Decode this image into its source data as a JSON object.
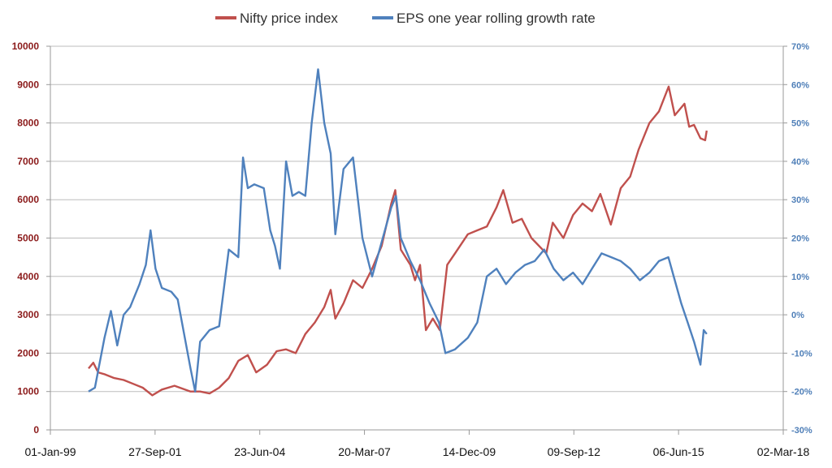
{
  "chart_data": {
    "type": "line",
    "title": "",
    "legend": {
      "placement": "top-center",
      "entries": [
        {
          "name": "Nifty price index",
          "color": "#c0504d"
        },
        {
          "name": "EPS one year rolling growth rate",
          "color": "#4f81bd"
        }
      ]
    },
    "x_axis": {
      "type": "date",
      "ticks": [
        "01-Jan-99",
        "27-Sep-01",
        "23-Jun-04",
        "20-Mar-07",
        "14-Dec-09",
        "09-Sep-12",
        "06-Jun-15",
        "02-Mar-18"
      ],
      "range": [
        "1999-01-01",
        "2018-03-02"
      ]
    },
    "y_left": {
      "ylim": [
        0,
        10000
      ],
      "ticks": [
        "0",
        "1000",
        "2000",
        "3000",
        "4000",
        "5000",
        "6000",
        "7000",
        "8000",
        "9000",
        "10000"
      ]
    },
    "y_right": {
      "ylim": [
        -30,
        70
      ],
      "unit": "%",
      "ticks": [
        "-30%",
        "-20%",
        "-10%",
        "0%",
        "10%",
        "20%",
        "30%",
        "40%",
        "50%",
        "60%",
        "70%"
      ]
    },
    "grid": true,
    "series": [
      {
        "name": "Nifty price index",
        "axis": "left",
        "color": "#c0504d",
        "points": [
          [
            "2000-01-01",
            1600
          ],
          [
            "2000-02-15",
            1750
          ],
          [
            "2000-04-01",
            1500
          ],
          [
            "2000-06-01",
            1450
          ],
          [
            "2000-09-01",
            1350
          ],
          [
            "2000-12-01",
            1300
          ],
          [
            "2001-03-01",
            1200
          ],
          [
            "2001-06-01",
            1100
          ],
          [
            "2001-09-01",
            900
          ],
          [
            "2001-12-01",
            1050
          ],
          [
            "2002-04-01",
            1150
          ],
          [
            "2002-09-01",
            1000
          ],
          [
            "2002-12-01",
            1000
          ],
          [
            "2003-03-01",
            950
          ],
          [
            "2003-06-01",
            1100
          ],
          [
            "2003-09-01",
            1350
          ],
          [
            "2003-12-01",
            1800
          ],
          [
            "2004-03-01",
            1950
          ],
          [
            "2004-05-20",
            1500
          ],
          [
            "2004-09-01",
            1700
          ],
          [
            "2004-12-01",
            2050
          ],
          [
            "2005-03-01",
            2100
          ],
          [
            "2005-06-01",
            2000
          ],
          [
            "2005-09-01",
            2500
          ],
          [
            "2005-12-01",
            2800
          ],
          [
            "2006-03-01",
            3200
          ],
          [
            "2006-05-01",
            3650
          ],
          [
            "2006-06-15",
            2900
          ],
          [
            "2006-09-01",
            3300
          ],
          [
            "2006-12-01",
            3900
          ],
          [
            "2007-03-01",
            3700
          ],
          [
            "2007-06-01",
            4200
          ],
          [
            "2007-09-01",
            4800
          ],
          [
            "2007-12-01",
            5900
          ],
          [
            "2008-01-08",
            6250
          ],
          [
            "2008-03-01",
            4700
          ],
          [
            "2008-06-01",
            4300
          ],
          [
            "2008-07-15",
            3900
          ],
          [
            "2008-09-01",
            4300
          ],
          [
            "2008-10-27",
            2600
          ],
          [
            "2009-01-01",
            2900
          ],
          [
            "2009-03-09",
            2600
          ],
          [
            "2009-05-18",
            4300
          ],
          [
            "2009-08-01",
            4600
          ],
          [
            "2009-12-01",
            5100
          ],
          [
            "2010-03-01",
            5200
          ],
          [
            "2010-06-01",
            5300
          ],
          [
            "2010-09-01",
            5800
          ],
          [
            "2010-11-05",
            6250
          ],
          [
            "2011-02-01",
            5400
          ],
          [
            "2011-05-01",
            5500
          ],
          [
            "2011-08-01",
            5000
          ],
          [
            "2011-12-20",
            4600
          ],
          [
            "2012-02-20",
            5400
          ],
          [
            "2012-06-01",
            5000
          ],
          [
            "2012-09-01",
            5600
          ],
          [
            "2012-12-01",
            5900
          ],
          [
            "2013-03-01",
            5700
          ],
          [
            "2013-05-20",
            6150
          ],
          [
            "2013-08-28",
            5350
          ],
          [
            "2013-12-01",
            6300
          ],
          [
            "2014-03-01",
            6600
          ],
          [
            "2014-05-20",
            7300
          ],
          [
            "2014-09-01",
            8000
          ],
          [
            "2014-12-01",
            8300
          ],
          [
            "2015-03-04",
            8950
          ],
          [
            "2015-05-01",
            8200
          ],
          [
            "2015-08-01",
            8500
          ],
          [
            "2015-09-15",
            7900
          ],
          [
            "2015-11-01",
            7950
          ],
          [
            "2016-01-01",
            7600
          ],
          [
            "2016-02-15",
            7550
          ],
          [
            "2016-03-01",
            7800
          ]
        ]
      },
      {
        "name": "EPS one year rolling growth rate",
        "axis": "right",
        "color": "#4f81bd",
        "points": [
          [
            "2000-01-01",
            -20
          ],
          [
            "2000-03-01",
            -19
          ],
          [
            "2000-06-01",
            -6
          ],
          [
            "2000-08-01",
            1
          ],
          [
            "2000-10-01",
            -8
          ],
          [
            "2000-12-01",
            0
          ],
          [
            "2001-02-01",
            2
          ],
          [
            "2001-05-01",
            8
          ],
          [
            "2001-07-01",
            13
          ],
          [
            "2001-08-15",
            22
          ],
          [
            "2001-10-01",
            12
          ],
          [
            "2001-12-01",
            7
          ],
          [
            "2002-03-01",
            6
          ],
          [
            "2002-05-01",
            4
          ],
          [
            "2002-07-01",
            -5
          ],
          [
            "2002-09-01",
            -14
          ],
          [
            "2002-10-15",
            -20
          ],
          [
            "2002-12-01",
            -7
          ],
          [
            "2003-03-01",
            -4
          ],
          [
            "2003-06-01",
            -3
          ],
          [
            "2003-09-01",
            17
          ],
          [
            "2003-12-01",
            15
          ],
          [
            "2004-01-15",
            41
          ],
          [
            "2004-03-01",
            33
          ],
          [
            "2004-05-01",
            34
          ],
          [
            "2004-08-01",
            33
          ],
          [
            "2004-10-01",
            22
          ],
          [
            "2004-11-15",
            18
          ],
          [
            "2005-01-01",
            12
          ],
          [
            "2005-03-01",
            40
          ],
          [
            "2005-05-01",
            31
          ],
          [
            "2005-07-01",
            32
          ],
          [
            "2005-09-01",
            31
          ],
          [
            "2005-11-01",
            50
          ],
          [
            "2006-01-01",
            64
          ],
          [
            "2006-03-01",
            50
          ],
          [
            "2006-05-01",
            42
          ],
          [
            "2006-06-15",
            21
          ],
          [
            "2006-09-01",
            38
          ],
          [
            "2006-12-01",
            41
          ],
          [
            "2007-03-01",
            20
          ],
          [
            "2007-06-01",
            10
          ],
          [
            "2007-09-01",
            19
          ],
          [
            "2007-12-01",
            28
          ],
          [
            "2008-01-15",
            31
          ],
          [
            "2008-03-01",
            20
          ],
          [
            "2008-06-01",
            14
          ],
          [
            "2008-09-01",
            9
          ],
          [
            "2008-12-01",
            3
          ],
          [
            "2009-03-01",
            -2
          ],
          [
            "2009-05-01",
            -10
          ],
          [
            "2009-08-01",
            -9
          ],
          [
            "2009-12-01",
            -6
          ],
          [
            "2010-03-01",
            -2
          ],
          [
            "2010-06-01",
            10
          ],
          [
            "2010-09-01",
            12
          ],
          [
            "2010-12-01",
            8
          ],
          [
            "2011-03-01",
            11
          ],
          [
            "2011-06-01",
            13
          ],
          [
            "2011-09-01",
            14
          ],
          [
            "2011-12-01",
            17
          ],
          [
            "2012-03-01",
            12
          ],
          [
            "2012-06-01",
            9
          ],
          [
            "2012-09-01",
            11
          ],
          [
            "2012-12-01",
            8
          ],
          [
            "2013-03-01",
            12
          ],
          [
            "2013-06-01",
            16
          ],
          [
            "2013-09-01",
            15
          ],
          [
            "2013-12-01",
            14
          ],
          [
            "2014-03-01",
            12
          ],
          [
            "2014-06-01",
            9
          ],
          [
            "2014-09-01",
            11
          ],
          [
            "2014-12-01",
            14
          ],
          [
            "2015-03-01",
            15
          ],
          [
            "2015-05-01",
            9
          ],
          [
            "2015-07-01",
            3
          ],
          [
            "2015-09-01",
            -2
          ],
          [
            "2015-11-01",
            -7
          ],
          [
            "2016-01-01",
            -13
          ],
          [
            "2016-02-01",
            -4
          ],
          [
            "2016-03-01",
            -5
          ]
        ]
      }
    ]
  }
}
